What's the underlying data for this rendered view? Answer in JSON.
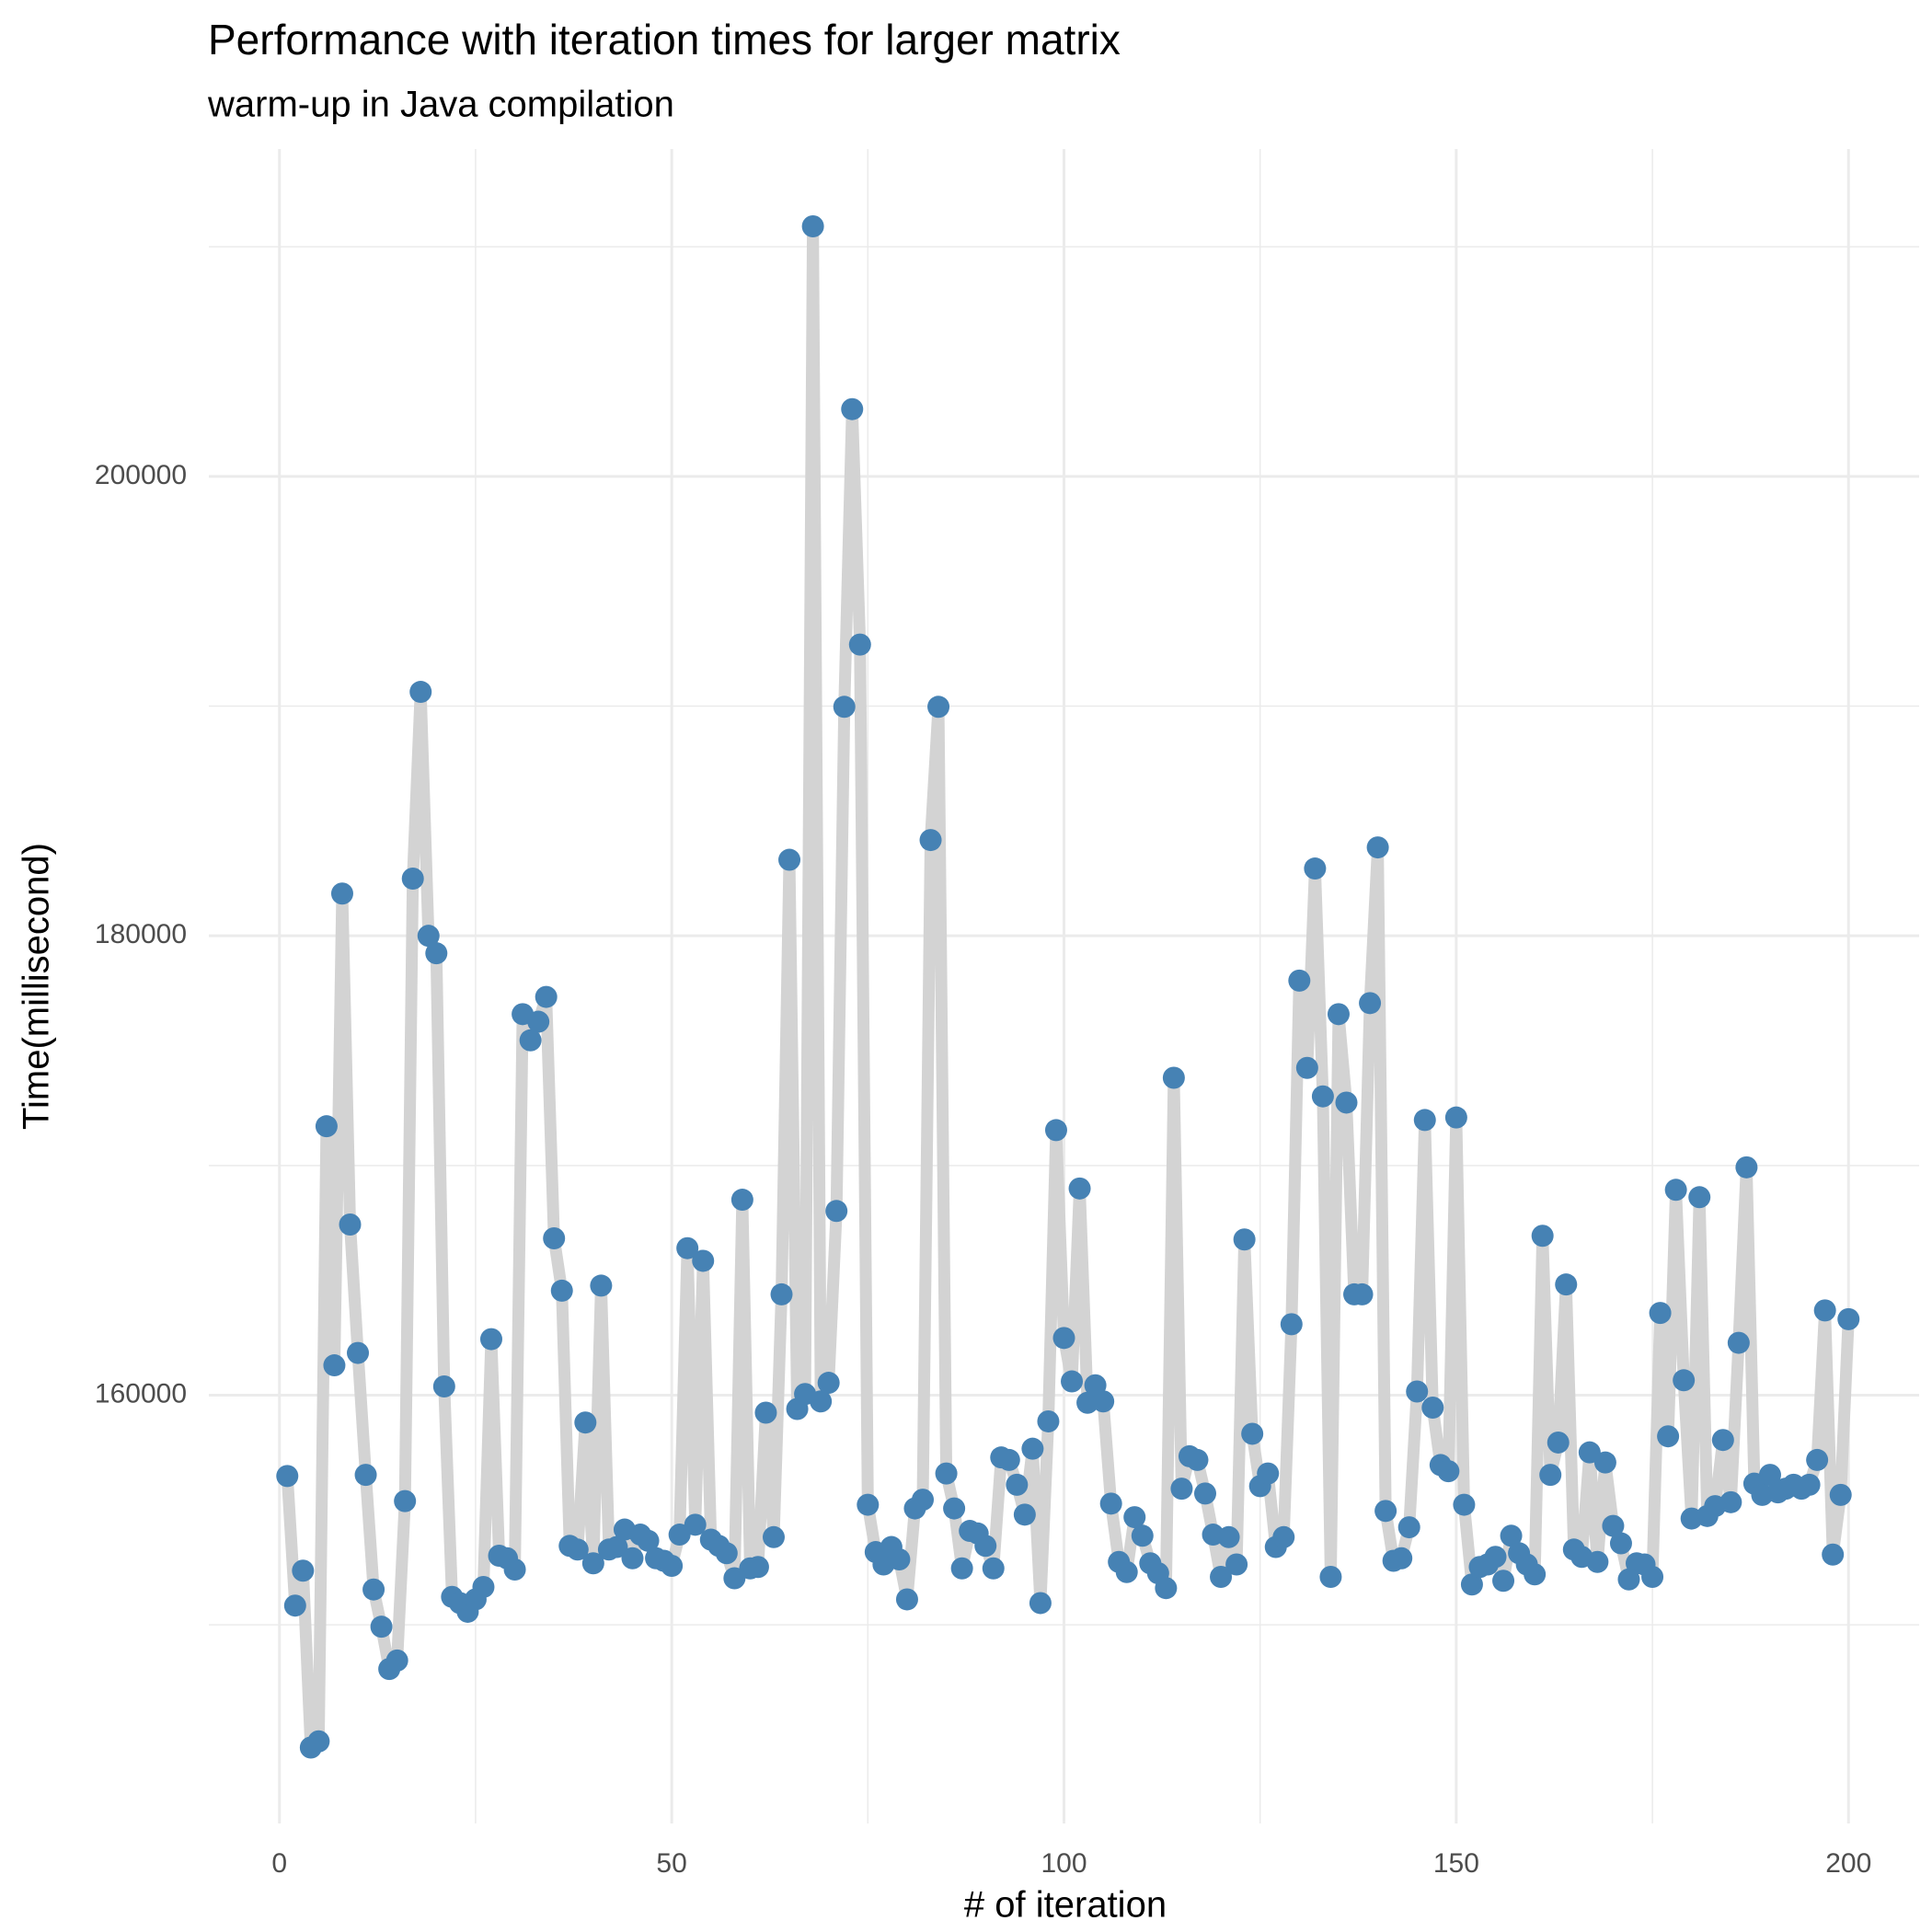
{
  "chart_data": {
    "type": "line",
    "title": "Performance with iteration times for larger matrix",
    "subtitle": "warm-up in Java compilation",
    "x_label": "# of iteration",
    "y_label": "Time(millisecond)",
    "line_color": "#d3d3d3",
    "point_color": "#4682b4",
    "grid": true,
    "xlim": [
      -9,
      209
    ],
    "ylim": [
      141355,
      214254
    ],
    "xticks": [
      0,
      50,
      100,
      150,
      200
    ],
    "yticks": [
      160000,
      180000,
      200000
    ],
    "x_minor_ticks": [
      25,
      75,
      125,
      175
    ],
    "y_minor_ticks": [
      150000,
      170000,
      190000,
      210000
    ],
    "x": [
      1,
      2,
      3,
      4,
      5,
      6,
      7,
      8,
      9,
      10,
      11,
      12,
      13,
      14,
      15,
      16,
      17,
      18,
      19,
      20,
      21,
      22,
      23,
      24,
      25,
      26,
      27,
      28,
      29,
      30,
      31,
      32,
      33,
      34,
      35,
      36,
      37,
      38,
      39,
      40,
      41,
      42,
      43,
      44,
      45,
      46,
      47,
      48,
      49,
      50,
      51,
      52,
      53,
      54,
      55,
      56,
      57,
      58,
      59,
      60,
      61,
      62,
      63,
      64,
      65,
      66,
      67,
      68,
      69,
      70,
      71,
      72,
      73,
      74,
      75,
      76,
      77,
      78,
      79,
      80,
      81,
      82,
      83,
      84,
      85,
      86,
      87,
      88,
      89,
      90,
      91,
      92,
      93,
      94,
      95,
      96,
      97,
      98,
      99,
      100,
      101,
      102,
      103,
      104,
      105,
      106,
      107,
      108,
      109,
      110,
      111,
      112,
      113,
      114,
      115,
      116,
      117,
      118,
      119,
      120,
      121,
      122,
      123,
      124,
      125,
      126,
      127,
      128,
      129,
      130,
      131,
      132,
      133,
      134,
      135,
      136,
      137,
      138,
      139,
      140,
      141,
      142,
      143,
      144,
      145,
      146,
      147,
      148,
      149,
      150,
      151,
      152,
      153,
      154,
      155,
      156,
      157,
      158,
      159,
      160,
      161,
      162,
      163,
      164,
      165,
      166,
      167,
      168,
      169,
      170,
      171,
      172,
      173,
      174,
      175,
      176,
      177,
      178,
      179,
      180,
      181,
      182,
      183,
      184,
      185,
      186,
      187,
      188,
      189,
      190,
      191,
      192,
      193,
      194,
      195,
      196,
      197,
      198,
      199,
      200
    ],
    "values": [
      156480,
      150840,
      152360,
      144660,
      144930,
      171710,
      161300,
      181840,
      167430,
      161840,
      156530,
      151540,
      149920,
      148080,
      148450,
      155390,
      182490,
      190620,
      180000,
      179240,
      160380,
      151220,
      150950,
      150570,
      151110,
      151650,
      162440,
      153010,
      152900,
      152410,
      176590,
      175450,
      176260,
      177340,
      166830,
      164550,
      153440,
      153280,
      158810,
      152680,
      164770,
      153280,
      153390,
      154150,
      152900,
      153930,
      153660,
      152900,
      152790,
      152570,
      153930,
      166400,
      154360,
      165850,
      153710,
      153440,
      153120,
      152030,
      168510,
      152460,
      152520,
      159240,
      153820,
      164390,
      183310,
      159400,
      160050,
      210890,
      159730,
      160540,
      168020,
      189970,
      202930,
      192680,
      155230,
      153170,
      152630,
      153390,
      152850,
      151110,
      155070,
      155450,
      184170,
      189970,
      156590,
      155070,
      152460,
      154090,
      153980,
      153440,
      152460,
      157290,
      157180,
      156100,
      154800,
      157670,
      150950,
      158860,
      171540,
      162490,
      160600,
      169000,
      159670,
      160430,
      159730,
      155280,
      152740,
      152300,
      154690,
      153880,
      152680,
      152250,
      151600,
      173820,
      155930,
      157340,
      157180,
      155720,
      153930,
      152090,
      153820,
      152630,
      166780,
      158320,
      156040,
      156590,
      153390,
      153820,
      163090,
      178050,
      174250,
      182930,
      173010,
      152090,
      176590,
      172740,
      164390,
      164390,
      177070,
      183850,
      154960,
      152790,
      152900,
      154250,
      160160,
      171980,
      159460,
      156960,
      156690,
      172090,
      155230,
      151760,
      152520,
      152630,
      152960,
      151920,
      153880,
      153120,
      152630,
      152200,
      166940,
      156530,
      157940,
      164820,
      153280,
      152960,
      157510,
      152740,
      157070,
      154310,
      153550,
      151980,
      152680,
      152630,
      152090,
      163580,
      158210,
      168940,
      160650,
      154630,
      168620,
      154740,
      155170,
      158050,
      155340,
      162280,
      169920,
      156150,
      155660,
      156530,
      155770,
      155930,
      156100,
      155930,
      156100,
      157180,
      163690,
      153060,
      155660,
      163310
    ]
  }
}
